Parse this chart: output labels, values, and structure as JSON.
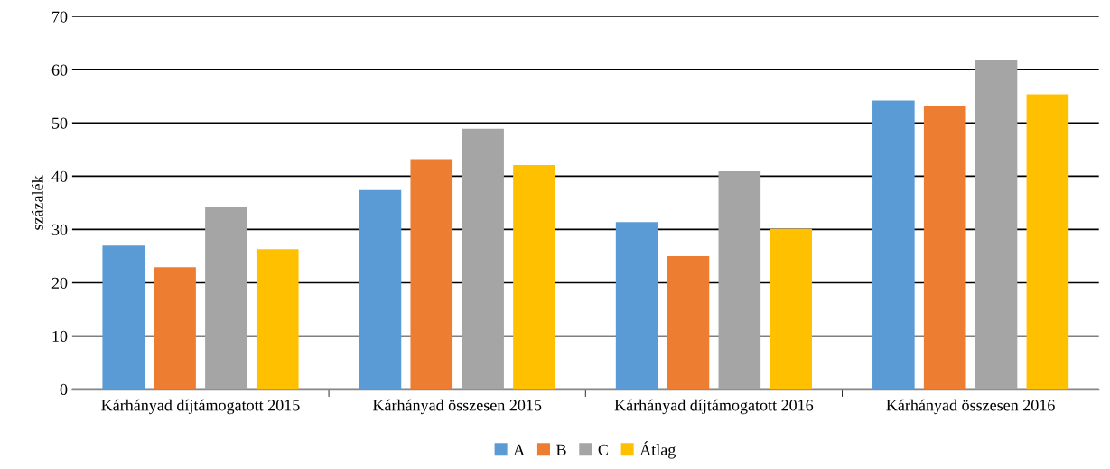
{
  "chart_data": {
    "type": "bar",
    "ylabel": "százalék",
    "categories": [
      "Kárhányad díjtámogatott 2015",
      "Kárhányad összesen 2015",
      "Kárhányad díjtámogatott 2016",
      "Kárhányad összesen 2016"
    ],
    "series": [
      {
        "name": "A",
        "color": "#5b9bd5",
        "values": [
          27.0,
          37.4,
          31.4,
          54.2
        ]
      },
      {
        "name": "B",
        "color": "#ed7d31",
        "values": [
          22.9,
          43.2,
          25.0,
          53.2
        ]
      },
      {
        "name": "C",
        "color": "#a5a5a5",
        "values": [
          34.3,
          48.9,
          40.9,
          61.8
        ]
      },
      {
        "name": "Átlag",
        "color": "#ffc000",
        "values": [
          26.3,
          42.1,
          30.1,
          55.4
        ]
      }
    ],
    "ylim": [
      0,
      70
    ],
    "yticks": [
      0,
      10,
      20,
      30,
      40,
      50,
      60,
      70
    ],
    "grid": "y",
    "legend": "bottom"
  }
}
